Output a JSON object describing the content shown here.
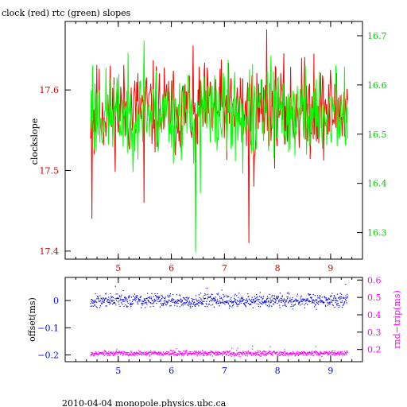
{
  "footer": "2010-04-04 monopole.physics.ubc.ca",
  "colors": {
    "frame": "#000000",
    "clock": "#ff0000",
    "clock_tick": "#cc0000",
    "rtc": "#00ff00",
    "rtc_tick": "#00cc00",
    "offset": "#0000ff",
    "rndtrip": "#ff00ff"
  },
  "chart_data": [
    {
      "type": "line",
      "title": "clock (red) rtc (green) slopes",
      "xlabel": "",
      "ylabel": "clockslope",
      "xlim": [
        4.0,
        9.6
      ],
      "xticks": [
        5,
        6,
        7,
        8,
        9
      ],
      "left_axis": {
        "ylim": [
          17.39,
          17.685
        ],
        "ticks": [
          17.4,
          17.5,
          17.6
        ],
        "tick_labels": [
          "17.4",
          "17.5",
          "17.6"
        ]
      },
      "right_axis": {
        "ylim": [
          16.246,
          16.729
        ],
        "ticks": [
          16.3,
          16.4,
          16.5,
          16.6,
          16.7
        ],
        "tick_labels": [
          "16.3",
          "16.4",
          "16.5",
          "16.6",
          "16.7"
        ]
      },
      "series": [
        {
          "name": "clock",
          "axis": "left",
          "baseline": 17.575,
          "noise": 0.028,
          "x_start": 4.48,
          "x_end": 9.32,
          "n": 420,
          "seed": 11,
          "spikes": [
            {
              "x": 4.5,
              "y": 17.44
            },
            {
              "x": 4.55,
              "y": 17.52
            },
            {
              "x": 5.48,
              "y": 17.46
            },
            {
              "x": 6.45,
              "y": 17.51
            },
            {
              "x": 7.46,
              "y": 17.41
            },
            {
              "x": 7.55,
              "y": 17.48
            },
            {
              "x": 7.8,
              "y": 17.675
            },
            {
              "x": 8.45,
              "y": 17.64
            },
            {
              "x": 8.68,
              "y": 17.645
            }
          ]
        },
        {
          "name": "rtc",
          "axis": "right",
          "baseline": 16.54,
          "noise": 0.045,
          "x_start": 4.48,
          "x_end": 9.32,
          "n": 420,
          "seed": 23,
          "spikes": [
            {
              "x": 4.51,
              "y": 16.64
            },
            {
              "x": 5.48,
              "y": 16.69
            },
            {
              "x": 6.45,
              "y": 16.26
            },
            {
              "x": 6.55,
              "y": 16.38
            },
            {
              "x": 7.35,
              "y": 16.42
            },
            {
              "x": 7.88,
              "y": 16.66
            },
            {
              "x": 8.7,
              "y": 16.62
            },
            {
              "x": 9.1,
              "y": 16.64
            }
          ]
        }
      ]
    },
    {
      "type": "scatter",
      "title": "",
      "xlabel": "",
      "ylabel": "offset(ms)",
      "xlim": [
        4.0,
        9.6
      ],
      "xticks": [
        5,
        6,
        7,
        8,
        9
      ],
      "left_axis": {
        "ylim": [
          -0.225,
          0.085
        ],
        "ticks": [
          -0.2,
          -0.1,
          0
        ],
        "tick_labels": [
          "−0.2",
          "−0.1",
          "0"
        ]
      },
      "right_axis": {
        "ylabel": "rnd−trip(ms)",
        "ylim": [
          0.13,
          0.615
        ],
        "ticks": [
          0.2,
          0.3,
          0.4,
          0.5,
          0.6
        ],
        "tick_labels": [
          "0.2",
          "0.3",
          "0.4",
          "0.5",
          "0.6"
        ]
      },
      "series": [
        {
          "name": "offset",
          "axis": "left",
          "baseline": 0.0,
          "noise": 0.012,
          "x_start": 4.48,
          "x_end": 9.32,
          "n": 900,
          "seed": 37,
          "outlier_max": 0.06
        },
        {
          "name": "rnd-trip",
          "axis": "right",
          "baseline": 0.178,
          "noise": 0.007,
          "x_start": 4.48,
          "x_end": 9.32,
          "n": 900,
          "seed": 53,
          "outlier_max": 0.22
        }
      ]
    }
  ]
}
